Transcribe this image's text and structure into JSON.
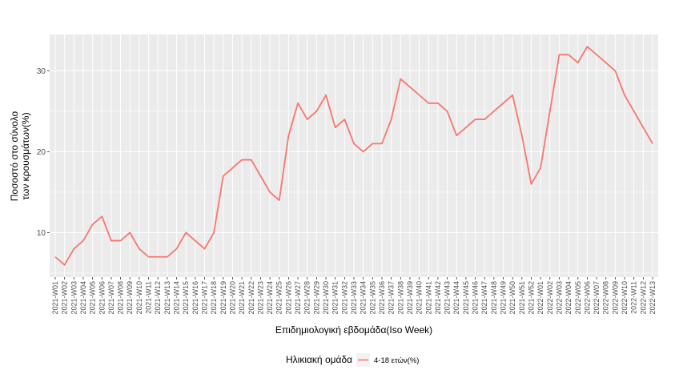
{
  "chart_data": {
    "type": "line",
    "xlabel": "Επιδημιολογική εβδομάδα(Iso Week)",
    "ylabel_lines": [
      "Ποσοστό στο σύνολο",
      "των κρουσμάτων(%)"
    ],
    "ylim": [
      4.5,
      34.5
    ],
    "yticks": [
      10,
      20,
      30
    ],
    "grid": true,
    "legend_position": "bottom",
    "legend_title": "Ηλικιακή ομάδα",
    "line_color": "#F8766D",
    "panel_color": "#EBEBEB",
    "x": [
      "2021-W01",
      "2021-W02",
      "2021-W03",
      "2021-W04",
      "2021-W05",
      "2021-W06",
      "2021-W07",
      "2021-W08",
      "2021-W09",
      "2021-W10",
      "2021-W11",
      "2021-W12",
      "2021-W13",
      "2021-W14",
      "2021-W15",
      "2021-W16",
      "2021-W17",
      "2021-W18",
      "2021-W19",
      "2021-W20",
      "2021-W21",
      "2021-W22",
      "2021-W23",
      "2021-W24",
      "2021-W25",
      "2021-W26",
      "2021-W27",
      "2021-W28",
      "2021-W29",
      "2021-W30",
      "2021-W31",
      "2021-W32",
      "2021-W33",
      "2021-W34",
      "2021-W35",
      "2021-W36",
      "2021-W37",
      "2021-W38",
      "2021-W39",
      "2021-W40",
      "2021-W41",
      "2021-W42",
      "2021-W43",
      "2021-W44",
      "2021-W45",
      "2021-W46",
      "2021-W47",
      "2021-W48",
      "2021-W49",
      "2021-W50",
      "2021-W51",
      "2021-W52",
      "2022-W01",
      "2022-W02",
      "2022-W03",
      "2022-W04",
      "2022-W05",
      "2022-W06",
      "2022-W07",
      "2022-W08",
      "2022-W09",
      "2022-W10",
      "2022-W11",
      "2022-W12",
      "2022-W13"
    ],
    "series": [
      {
        "name": "4-18 ετών(%)",
        "values": [
          7,
          6,
          8,
          9,
          11,
          12,
          9,
          9,
          10,
          8,
          7,
          7,
          7,
          8,
          10,
          9,
          8,
          10,
          17,
          18,
          19,
          19,
          17,
          15,
          14,
          22,
          26,
          24,
          25,
          27,
          23,
          24,
          21,
          20,
          21,
          21,
          24,
          29,
          28,
          27,
          26,
          26,
          25,
          22,
          23,
          24,
          24,
          25,
          26,
          27,
          22,
          16,
          18,
          25,
          32,
          32,
          31,
          33,
          32,
          31,
          30,
          27,
          25,
          23,
          21
        ]
      }
    ]
  }
}
